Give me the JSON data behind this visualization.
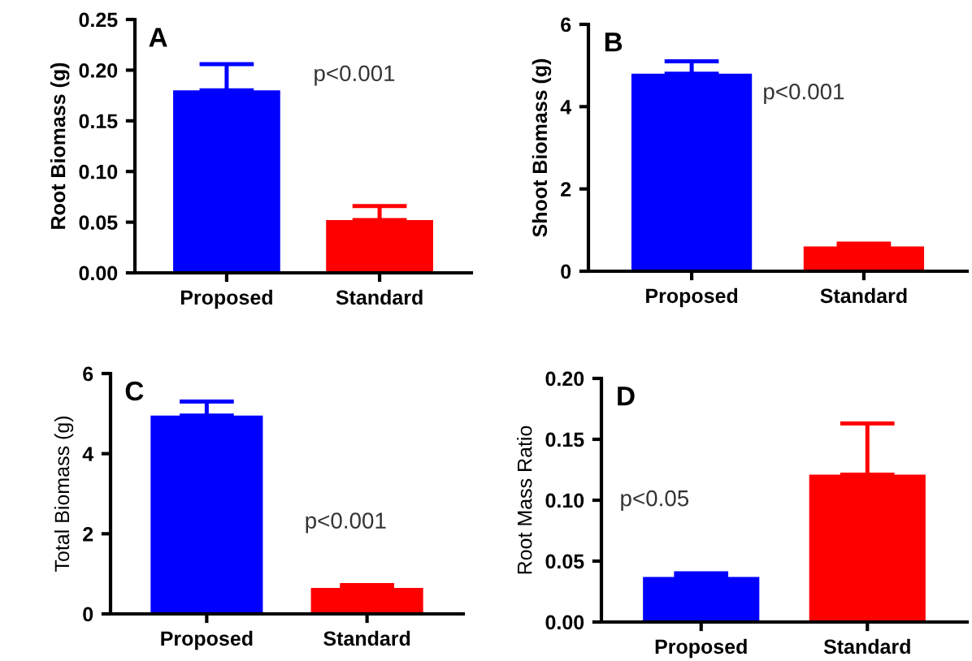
{
  "chart_data": [
    {
      "type": "bar",
      "title": "A",
      "ylabel": "Root Biomass (g)",
      "categories": [
        "Proposed",
        "Standard"
      ],
      "colors": [
        "#0000ff",
        "#ff0000"
      ],
      "values": [
        0.18,
        0.052
      ],
      "errors": [
        [
          0.18,
          0.206
        ],
        [
          0.052,
          0.066
        ]
      ],
      "ylim": [
        0,
        0.25
      ],
      "yticks": [
        {
          "value": 0,
          "label": "0.00"
        },
        {
          "value": 0.05,
          "label": "0.05"
        },
        {
          "value": 0.1,
          "label": "0.10"
        },
        {
          "value": 0.15,
          "label": "0.15"
        },
        {
          "value": 0.2,
          "label": "0.20"
        },
        {
          "value": 0.25,
          "label": "0.25"
        }
      ],
      "annotations": [
        "p<0.001"
      ]
    },
    {
      "type": "bar",
      "title": "B",
      "ylabel": "Shoot Biomass (g)",
      "categories": [
        "Proposed",
        "Standard"
      ],
      "colors": [
        "#0000ff",
        "#ff0000"
      ],
      "values": [
        4.8,
        0.6
      ],
      "errors": [
        [
          4.8,
          5.1
        ],
        [
          0.6,
          0.67
        ]
      ],
      "ylim": [
        0,
        6
      ],
      "yticks": [
        0,
        2,
        4,
        6
      ],
      "annotations": [
        "p<0.001"
      ]
    },
    {
      "type": "bar",
      "title": "C",
      "ylabel": "Total Biomass (g)",
      "categories": [
        "Proposed",
        "Standard"
      ],
      "colors": [
        "#0000ff",
        "#ff0000"
      ],
      "values": [
        4.95,
        0.65
      ],
      "errors": [
        [
          4.95,
          5.3
        ],
        [
          0.65,
          0.72
        ]
      ],
      "ylim": [
        0,
        6
      ],
      "yticks": [
        0,
        2,
        4,
        6
      ],
      "annotations": [
        "p<0.001"
      ]
    },
    {
      "type": "bar",
      "title": "D",
      "ylabel": "Root Mass Ratio",
      "categories": [
        "Proposed",
        "Standard"
      ],
      "colors": [
        "#0000ff",
        "#ff0000"
      ],
      "values": [
        0.037,
        0.121
      ],
      "errors": [
        [
          0.037,
          0.04
        ],
        [
          0.121,
          0.163
        ]
      ],
      "ylim": [
        0,
        0.2
      ],
      "yticks": [
        {
          "value": 0,
          "label": "0.00"
        },
        {
          "value": 0.05,
          "label": "0.05"
        },
        {
          "value": 0.1,
          "label": "0.10"
        },
        {
          "value": 0.15,
          "label": "0.15"
        },
        {
          "value": 0.2,
          "label": "0.20"
        }
      ],
      "annotations": [
        "p<0.05"
      ]
    }
  ]
}
